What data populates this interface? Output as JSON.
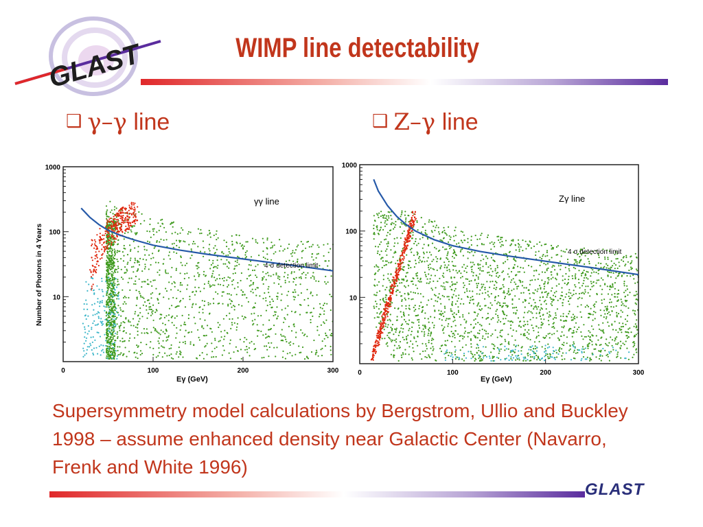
{
  "slide": {
    "title": "WIMP line detectability",
    "logo_text": "GLAST",
    "footer_logo_text": "GLAST",
    "bullets": [
      {
        "marker": "❑",
        "symbol": "γ–γ",
        "label": " line"
      },
      {
        "marker": "❑",
        "symbol": "Z–γ",
        "label": " line"
      }
    ],
    "caption": "Supersymmetry model calculations by Bergstrom, Ullio and Buckley 1998 – assume enhanced density near Galactic Center (Navarro, Frenk and White 1996)",
    "colors": {
      "title": "#c1361c",
      "text": "#c1361c",
      "accent_purple": "#5a2c9e",
      "curve": "#2559a8",
      "points_green": "#3f9a1e",
      "points_red": "#e0280f",
      "points_cyan": "#3ab5c8"
    }
  },
  "chart_data": [
    {
      "type": "scatter",
      "title": "",
      "annotation": "γγ line",
      "curve_label": "4 σ detection limit",
      "xlabel": "Eγ  (GeV)",
      "ylabel": "Number of Photons in 4 Years",
      "xlim": [
        0,
        300
      ],
      "ylim": [
        1,
        1000
      ],
      "yscale": "log",
      "x_ticks": [
        "0",
        "100",
        "200",
        "300"
      ],
      "y_ticks": [
        "10",
        "100",
        "1000"
      ],
      "detection_limit": {
        "x": [
          20,
          30,
          40,
          50,
          60,
          70,
          80,
          100,
          130,
          160,
          200,
          250,
          300
        ],
        "y": [
          230,
          165,
          128,
          105,
          92,
          82,
          74,
          62,
          52,
          45,
          38,
          31,
          25
        ]
      },
      "clusters": {
        "green": [
          {
            "x": [
              45,
              300
            ],
            "y": [
              1,
              300
            ],
            "note": "spread band, dense near x=50-60"
          }
        ],
        "red": [
          {
            "x": [
              25,
              80
            ],
            "y": [
              8,
              300
            ]
          }
        ],
        "cyan": [
          {
            "x": [
              20,
              65
            ],
            "y": [
              1,
              25
            ]
          }
        ]
      }
    },
    {
      "type": "scatter",
      "title": "",
      "annotation": "Zγ line",
      "curve_label": "4 σ detection limit",
      "xlabel": "Eγ  (GeV)",
      "ylabel": "",
      "xlim": [
        0,
        300
      ],
      "ylim": [
        1,
        1000
      ],
      "yscale": "log",
      "x_ticks": [
        "0",
        "100",
        "200",
        "300"
      ],
      "y_ticks": [
        "10",
        "100",
        "1000"
      ],
      "detection_limit": {
        "x": [
          15,
          20,
          30,
          40,
          50,
          60,
          80,
          100,
          130,
          160,
          200,
          250,
          300
        ],
        "y": [
          600,
          400,
          240,
          165,
          125,
          100,
          74,
          60,
          49,
          42,
          35,
          28,
          22
        ]
      },
      "clusters": {
        "green": [
          {
            "x": [
              15,
              300
            ],
            "y": [
              1,
              200
            ],
            "note": "fan below curve"
          }
        ],
        "red": [
          {
            "x": [
              12,
              58
            ],
            "y": [
              1,
              190
            ]
          }
        ],
        "cyan": [
          {
            "x": [
              90,
              290
            ],
            "y": [
              1,
              2
            ]
          }
        ]
      }
    }
  ]
}
